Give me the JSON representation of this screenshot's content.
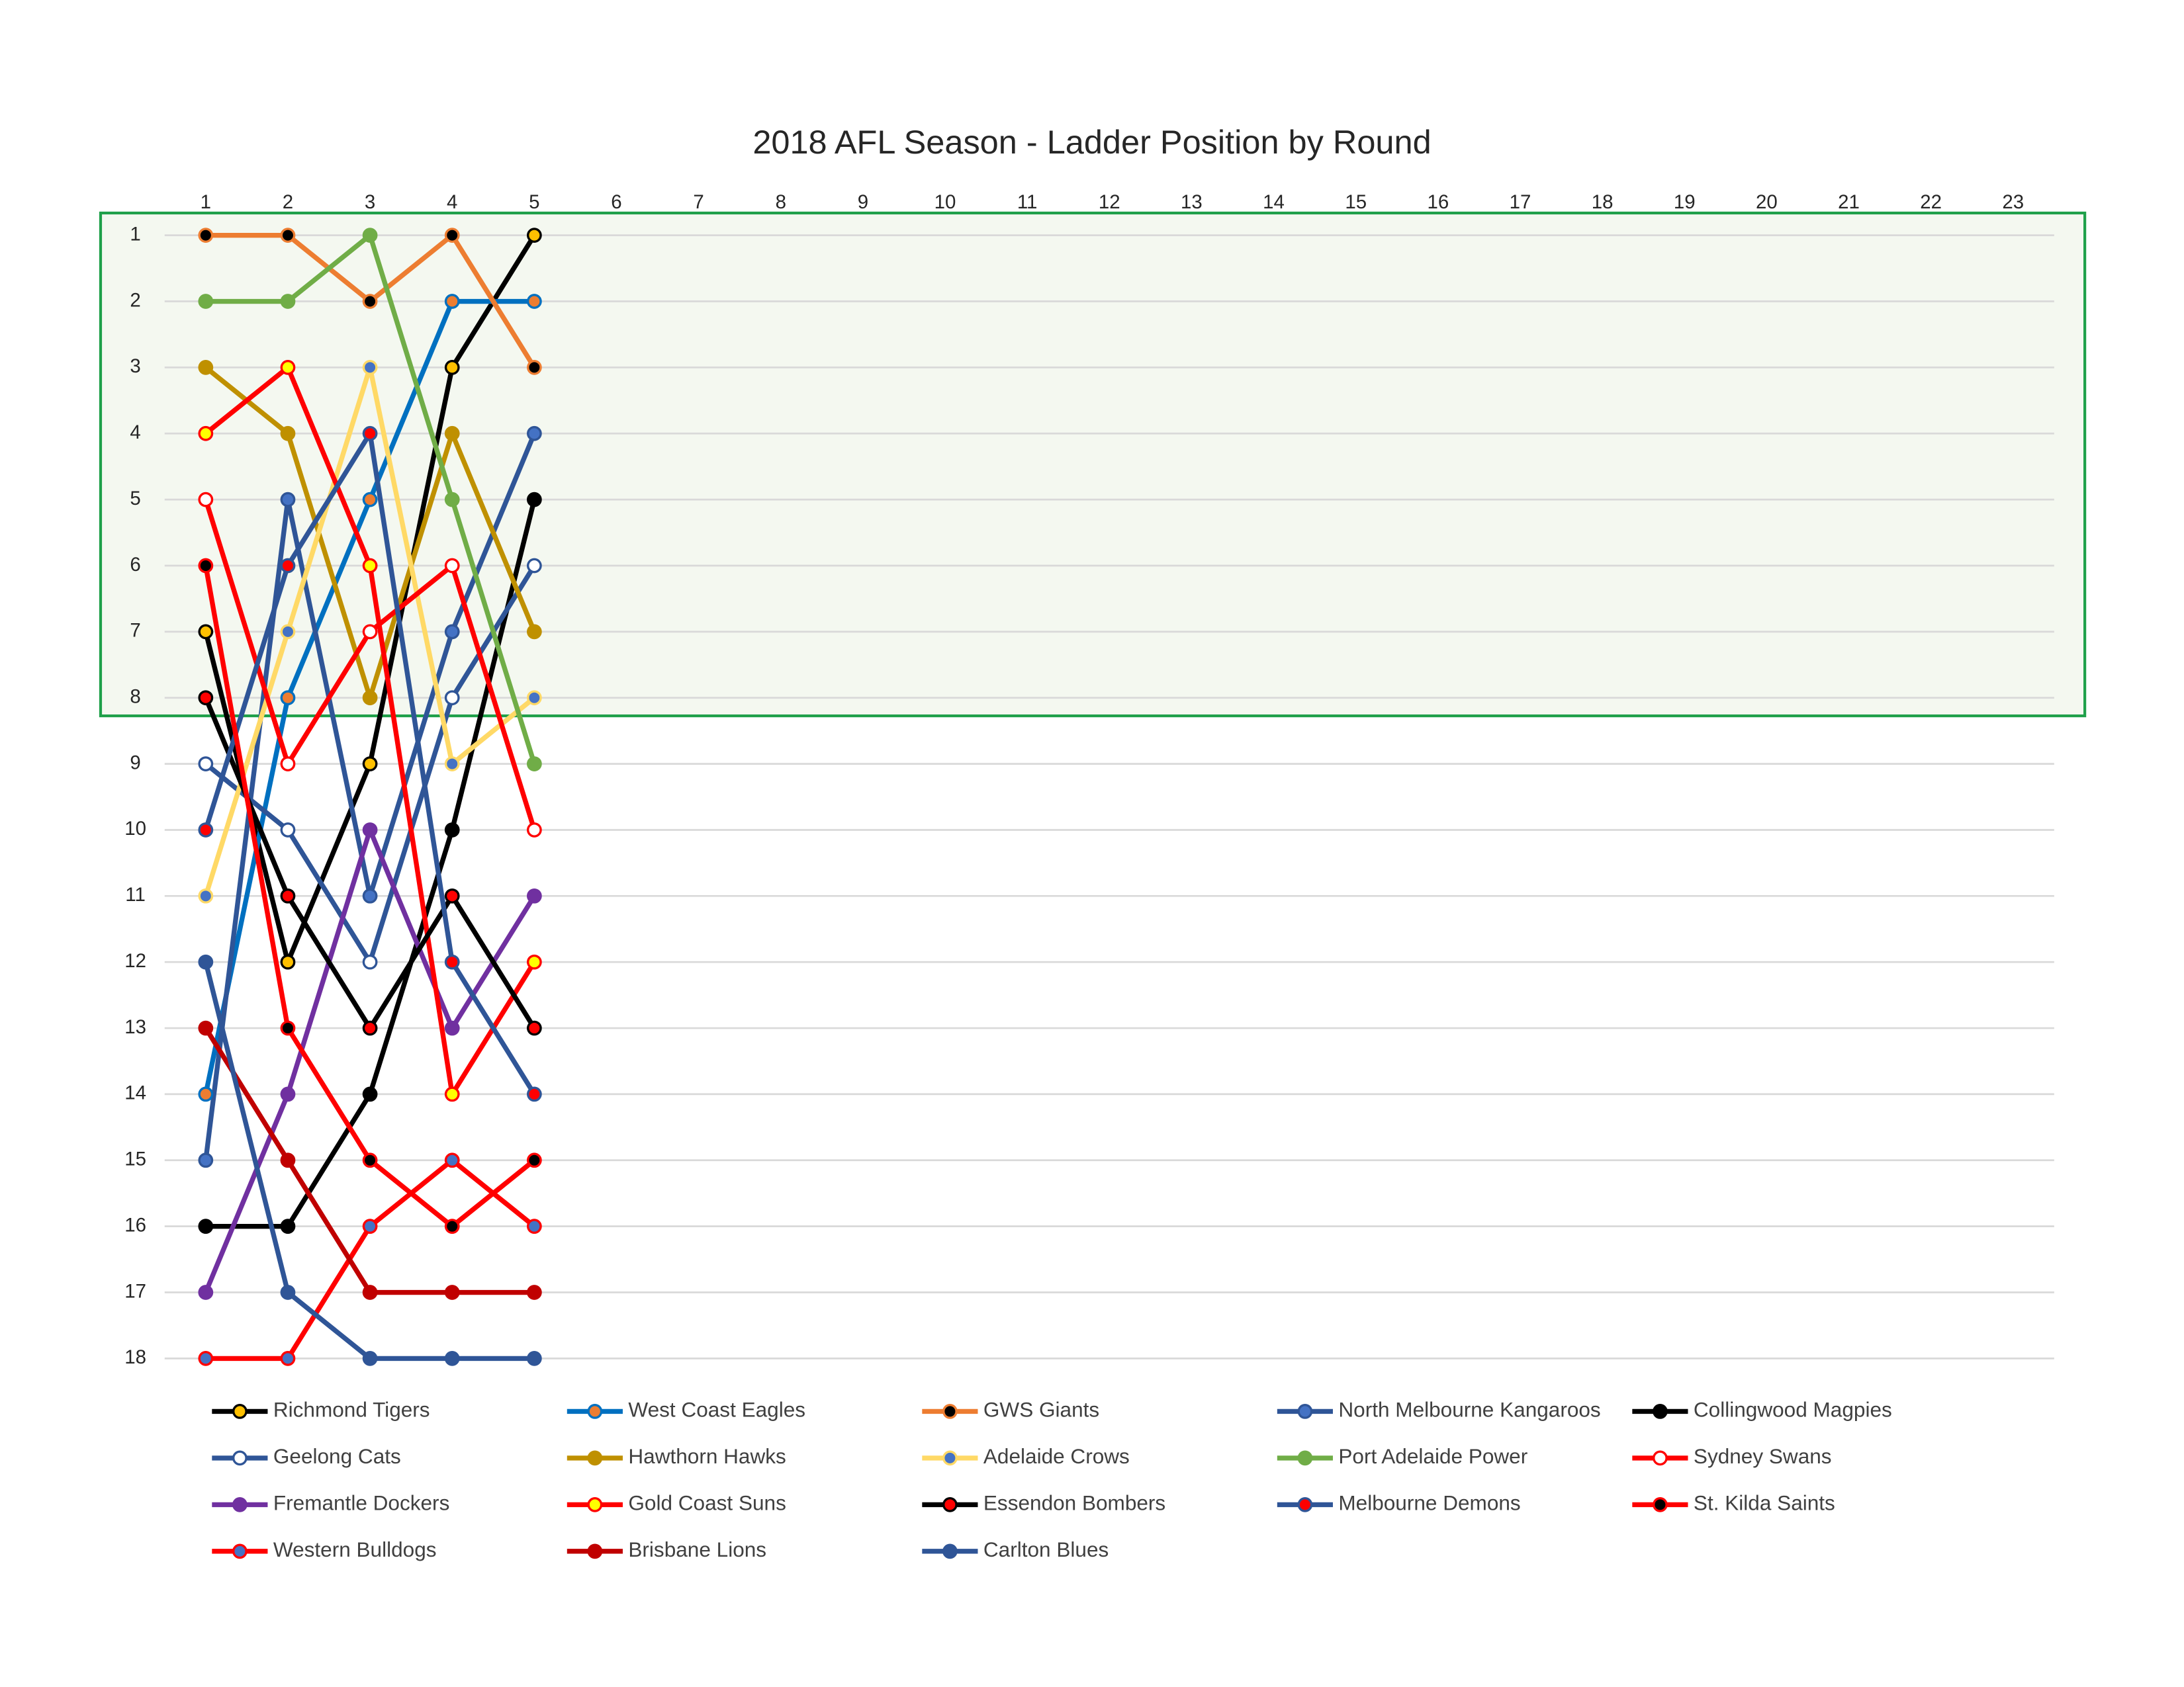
{
  "chart_data": {
    "type": "line",
    "title": "2018 AFL Season - Ladder Position by Round",
    "x": [
      1,
      2,
      3,
      4,
      5,
      6,
      7,
      8,
      9,
      10,
      11,
      12,
      13,
      14,
      15,
      16,
      17,
      18,
      19,
      20,
      21,
      22,
      23
    ],
    "xlim": [
      0.5,
      23.5
    ],
    "xticks": [
      1,
      2,
      3,
      4,
      5,
      6,
      7,
      8,
      9,
      10,
      11,
      12,
      13,
      14,
      15,
      16,
      17,
      18,
      19,
      20,
      21,
      22,
      23
    ],
    "ylim": [
      0.5,
      18.5
    ],
    "yticks": [
      1,
      2,
      3,
      4,
      5,
      6,
      7,
      8,
      9,
      10,
      11,
      12,
      13,
      14,
      15,
      16,
      17,
      18
    ],
    "y_reversed": true,
    "grid": true,
    "highlight_range": [
      1,
      8
    ],
    "highlight_color": "#f4f8f0",
    "highlight_edge": "#1fa04a",
    "legend": "bottom",
    "series": [
      {
        "name": "Richmond Tigers",
        "color": "#000000",
        "marker_color": "#ffc000",
        "values": [
          7,
          12,
          9,
          3,
          1,
          null,
          null,
          null,
          null,
          null,
          null,
          null,
          null,
          null,
          null,
          null,
          null,
          null,
          null,
          null,
          null,
          null,
          null
        ]
      },
      {
        "name": "West Coast Eagles",
        "color": "#0070c0",
        "marker_color": "#ed7d31",
        "values": [
          14,
          8,
          5,
          2,
          2,
          null,
          null,
          null,
          null,
          null,
          null,
          null,
          null,
          null,
          null,
          null,
          null,
          null,
          null,
          null,
          null,
          null,
          null
        ]
      },
      {
        "name": "GWS Giants",
        "color": "#ed7d31",
        "marker_color": "#000000",
        "values": [
          1,
          1,
          2,
          1,
          3,
          null,
          null,
          null,
          null,
          null,
          null,
          null,
          null,
          null,
          null,
          null,
          null,
          null,
          null,
          null,
          null,
          null,
          null
        ]
      },
      {
        "name": "North Melbourne Kangaroos",
        "color": "#2f5597",
        "marker_color": "#4472c4",
        "values": [
          15,
          5,
          11,
          7,
          4,
          null,
          null,
          null,
          null,
          null,
          null,
          null,
          null,
          null,
          null,
          null,
          null,
          null,
          null,
          null,
          null,
          null,
          null
        ]
      },
      {
        "name": "Collingwood Magpies",
        "color": "#000000",
        "marker_color": "#000000",
        "values": [
          16,
          16,
          14,
          10,
          5,
          null,
          null,
          null,
          null,
          null,
          null,
          null,
          null,
          null,
          null,
          null,
          null,
          null,
          null,
          null,
          null,
          null,
          null
        ]
      },
      {
        "name": "Geelong Cats",
        "color": "#2f5597",
        "marker_color": "#ffffff",
        "values": [
          9,
          10,
          12,
          8,
          6,
          null,
          null,
          null,
          null,
          null,
          null,
          null,
          null,
          null,
          null,
          null,
          null,
          null,
          null,
          null,
          null,
          null,
          null
        ]
      },
      {
        "name": "Hawthorn Hawks",
        "color": "#bf9000",
        "marker_color": "#bf9000",
        "values": [
          3,
          4,
          8,
          4,
          7,
          null,
          null,
          null,
          null,
          null,
          null,
          null,
          null,
          null,
          null,
          null,
          null,
          null,
          null,
          null,
          null,
          null,
          null
        ]
      },
      {
        "name": "Adelaide Crows",
        "color": "#ffd966",
        "marker_color": "#4472c4",
        "values": [
          11,
          7,
          3,
          9,
          8,
          null,
          null,
          null,
          null,
          null,
          null,
          null,
          null,
          null,
          null,
          null,
          null,
          null,
          null,
          null,
          null,
          null,
          null
        ]
      },
      {
        "name": "Port Adelaide Power",
        "color": "#70ad47",
        "marker_color": "#70ad47",
        "values": [
          2,
          2,
          1,
          5,
          9,
          null,
          null,
          null,
          null,
          null,
          null,
          null,
          null,
          null,
          null,
          null,
          null,
          null,
          null,
          null,
          null,
          null,
          null
        ]
      },
      {
        "name": "Sydney Swans",
        "color": "#ff0000",
        "marker_color": "#ffffff",
        "values": [
          5,
          9,
          7,
          6,
          10,
          null,
          null,
          null,
          null,
          null,
          null,
          null,
          null,
          null,
          null,
          null,
          null,
          null,
          null,
          null,
          null,
          null,
          null
        ]
      },
      {
        "name": "Fremantle Dockers",
        "color": "#7030a0",
        "marker_color": "#7030a0",
        "values": [
          17,
          14,
          10,
          13,
          11,
          null,
          null,
          null,
          null,
          null,
          null,
          null,
          null,
          null,
          null,
          null,
          null,
          null,
          null,
          null,
          null,
          null,
          null
        ]
      },
      {
        "name": "Gold Coast Suns",
        "color": "#ff0000",
        "marker_color": "#ffff00",
        "values": [
          4,
          3,
          6,
          14,
          12,
          null,
          null,
          null,
          null,
          null,
          null,
          null,
          null,
          null,
          null,
          null,
          null,
          null,
          null,
          null,
          null,
          null,
          null
        ]
      },
      {
        "name": "Essendon Bombers",
        "color": "#000000",
        "marker_color": "#ff0000",
        "values": [
          8,
          11,
          13,
          11,
          13,
          null,
          null,
          null,
          null,
          null,
          null,
          null,
          null,
          null,
          null,
          null,
          null,
          null,
          null,
          null,
          null,
          null,
          null
        ]
      },
      {
        "name": "Melbourne Demons",
        "color": "#2f5597",
        "marker_color": "#ff0000",
        "values": [
          10,
          6,
          4,
          12,
          14,
          null,
          null,
          null,
          null,
          null,
          null,
          null,
          null,
          null,
          null,
          null,
          null,
          null,
          null,
          null,
          null,
          null,
          null
        ]
      },
      {
        "name": "St. Kilda Saints",
        "color": "#ff0000",
        "marker_color": "#000000",
        "values": [
          6,
          13,
          15,
          16,
          15,
          null,
          null,
          null,
          null,
          null,
          null,
          null,
          null,
          null,
          null,
          null,
          null,
          null,
          null,
          null,
          null,
          null,
          null
        ]
      },
      {
        "name": "Western Bulldogs",
        "color": "#ff0000",
        "marker_color": "#4472c4",
        "values": [
          18,
          18,
          16,
          15,
          16,
          null,
          null,
          null,
          null,
          null,
          null,
          null,
          null,
          null,
          null,
          null,
          null,
          null,
          null,
          null,
          null,
          null,
          null
        ]
      },
      {
        "name": "Brisbane Lions",
        "color": "#c00000",
        "marker_color": "#c00000",
        "values": [
          13,
          15,
          17,
          17,
          17,
          null,
          null,
          null,
          null,
          null,
          null,
          null,
          null,
          null,
          null,
          null,
          null,
          null,
          null,
          null,
          null,
          null,
          null
        ]
      },
      {
        "name": "Carlton Blues",
        "color": "#2f5597",
        "marker_color": "#2f5597",
        "values": [
          12,
          17,
          18,
          18,
          18,
          null,
          null,
          null,
          null,
          null,
          null,
          null,
          null,
          null,
          null,
          null,
          null,
          null,
          null,
          null,
          null,
          null,
          null
        ]
      }
    ]
  }
}
